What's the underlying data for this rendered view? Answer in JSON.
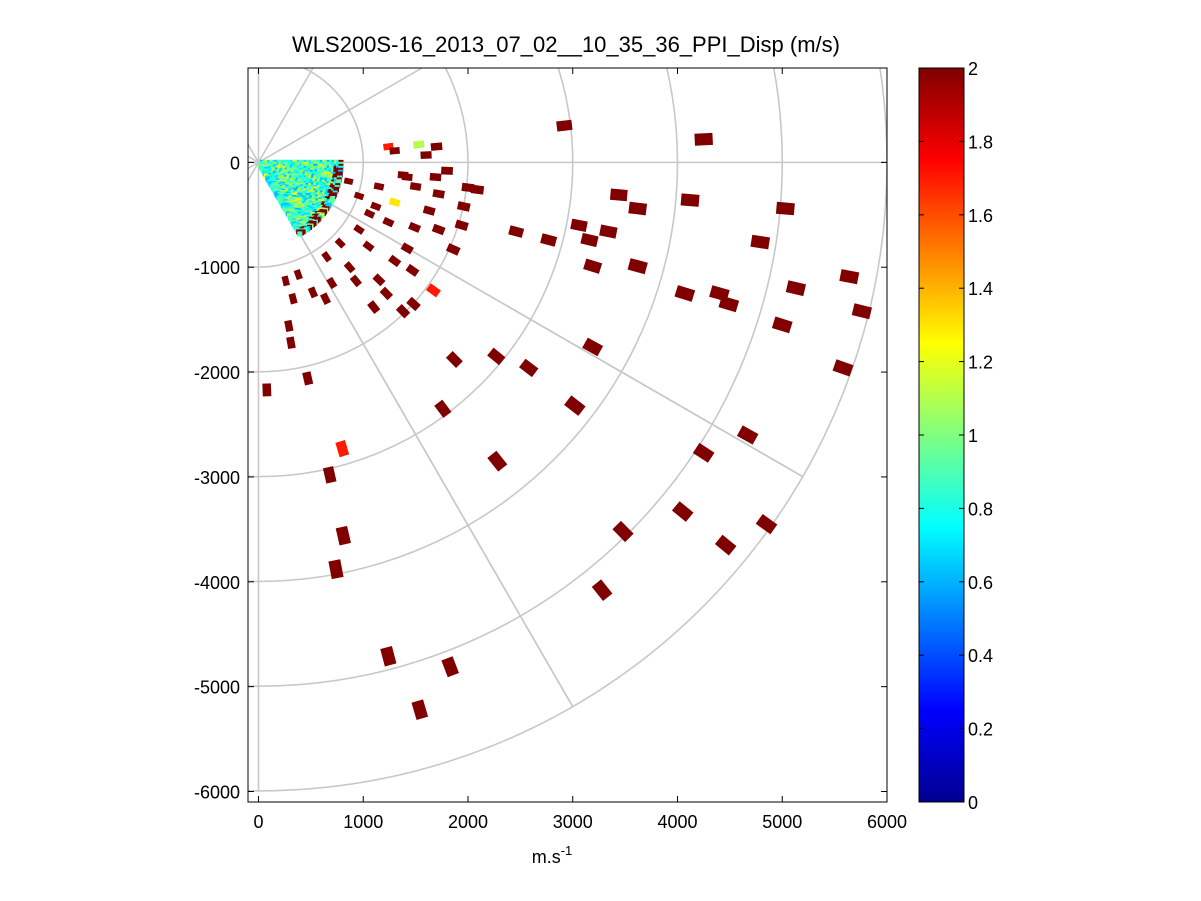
{
  "chart_data": {
    "type": "scatter",
    "subtype": "polar-ppi",
    "title": "WLS200S-16_2013_07_02__10_35_36_PPI_Disp (m/s)",
    "xlabel": "m.s",
    "xlabel_superscript": "-1",
    "ylabel": "",
    "xlim": [
      -100,
      6000
    ],
    "ylim": [
      -6100,
      900
    ],
    "xticks": [
      0,
      1000,
      2000,
      3000,
      4000,
      5000,
      6000
    ],
    "xtick_labels": [
      "0",
      "1000",
      "2000",
      "3000",
      "4000",
      "5000",
      "6000"
    ],
    "yticks": [
      0,
      -1000,
      -2000,
      -3000,
      -4000,
      -5000,
      -6000
    ],
    "ytick_labels": [
      "0",
      "-1000",
      "-2000",
      "-3000",
      "-4000",
      "-5000",
      "-6000"
    ],
    "polar_grid": {
      "ring_radii": [
        1000,
        2000,
        3000,
        4000,
        5000,
        6000
      ],
      "spoke_angles_deg": [
        0,
        -30,
        -60,
        30,
        60,
        90,
        120,
        150,
        180,
        210,
        240,
        270,
        300,
        330
      ]
    },
    "colorbar": {
      "colormap": "jet",
      "clim": [
        0,
        2
      ],
      "ticks": [
        0,
        0.2,
        0.4,
        0.6,
        0.8,
        1,
        1.2,
        1.4,
        1.6,
        1.8,
        2
      ],
      "tick_labels": [
        "0",
        "0.2",
        "0.4",
        "0.6",
        "0.8",
        "1",
        "1.2",
        "1.4",
        "1.6",
        "1.8",
        "2"
      ]
    },
    "near_field": {
      "description_values": "dense returns within ~800 m, values mostly 0.6-1.2",
      "r_max": 800,
      "angle_from_deg": 0,
      "angle_to_deg": -60
    },
    "points": [
      {
        "x": 2920,
        "y": 350,
        "v": 2
      },
      {
        "x": 4250,
        "y": 220,
        "v": 2
      },
      {
        "x": 3440,
        "y": -310,
        "v": 2
      },
      {
        "x": 4120,
        "y": -360,
        "v": 2
      },
      {
        "x": 5030,
        "y": -440,
        "v": 2
      },
      {
        "x": 3620,
        "y": -440,
        "v": 2
      },
      {
        "x": 2460,
        "y": -660,
        "v": 2
      },
      {
        "x": 3060,
        "y": -600,
        "v": 2
      },
      {
        "x": 3340,
        "y": -660,
        "v": 2
      },
      {
        "x": 2770,
        "y": -740,
        "v": 2
      },
      {
        "x": 3160,
        "y": -740,
        "v": 2
      },
      {
        "x": 4790,
        "y": -760,
        "v": 2
      },
      {
        "x": 3190,
        "y": -990,
        "v": 2
      },
      {
        "x": 3620,
        "y": -990,
        "v": 2
      },
      {
        "x": 5640,
        "y": -1090,
        "v": 2
      },
      {
        "x": 4400,
        "y": -1250,
        "v": 2
      },
      {
        "x": 4070,
        "y": -1250,
        "v": 2
      },
      {
        "x": 5130,
        "y": -1200,
        "v": 2
      },
      {
        "x": 4490,
        "y": -1350,
        "v": 2
      },
      {
        "x": 5760,
        "y": -1420,
        "v": 2
      },
      {
        "x": 5000,
        "y": -1550,
        "v": 2
      },
      {
        "x": 3190,
        "y": -1760,
        "v": 2
      },
      {
        "x": 1870,
        "y": -1880,
        "v": 2
      },
      {
        "x": 2270,
        "y": -1850,
        "v": 2
      },
      {
        "x": 2580,
        "y": -1960,
        "v": 2
      },
      {
        "x": 5580,
        "y": -1960,
        "v": 2
      },
      {
        "x": 3020,
        "y": -2320,
        "v": 2
      },
      {
        "x": 1760,
        "y": -2350,
        "v": 2
      },
      {
        "x": 4670,
        "y": -2600,
        "v": 2
      },
      {
        "x": 800,
        "y": -2730,
        "v": 1.7
      },
      {
        "x": 4250,
        "y": -2770,
        "v": 2
      },
      {
        "x": 2280,
        "y": -2850,
        "v": 2
      },
      {
        "x": 680,
        "y": -2980,
        "v": 2
      },
      {
        "x": 4050,
        "y": -3330,
        "v": 2
      },
      {
        "x": 4850,
        "y": -3450,
        "v": 2
      },
      {
        "x": 3480,
        "y": -3520,
        "v": 2
      },
      {
        "x": 810,
        "y": -3560,
        "v": 2
      },
      {
        "x": 4460,
        "y": -3650,
        "v": 2
      },
      {
        "x": 740,
        "y": -3880,
        "v": 2
      },
      {
        "x": 3280,
        "y": -4080,
        "v": 2
      },
      {
        "x": 1240,
        "y": -4710,
        "v": 2
      },
      {
        "x": 1830,
        "y": -4810,
        "v": 2
      },
      {
        "x": 1540,
        "y": -5220,
        "v": 2
      },
      {
        "x": 80,
        "y": -2170,
        "v": 2
      },
      {
        "x": 470,
        "y": -2060,
        "v": 2
      },
      {
        "x": 1670,
        "y": -1220,
        "v": 1.7
      },
      {
        "x": 1530,
        "y": 170,
        "v": 1.1
      },
      {
        "x": 1240,
        "y": 150,
        "v": 1.7
      },
      {
        "x": 1300,
        "y": -380,
        "v": 1.3
      },
      {
        "x": 1500,
        "y": -230,
        "v": 2
      },
      {
        "x": 1720,
        "y": -300,
        "v": 2
      },
      {
        "x": 1960,
        "y": -420,
        "v": 2
      },
      {
        "x": 2090,
        "y": -260,
        "v": 2
      },
      {
        "x": 1420,
        "y": -140,
        "v": 2
      },
      {
        "x": 1380,
        "y": -1420,
        "v": 2
      },
      {
        "x": 1480,
        "y": -1350,
        "v": 2
      },
      {
        "x": 1100,
        "y": -1380,
        "v": 2
      },
      {
        "x": 1600,
        "y": 70,
        "v": 2
      },
      {
        "x": 1380,
        "y": -120,
        "v": 2
      },
      {
        "x": 1800,
        "y": -80,
        "v": 2
      },
      {
        "x": 1150,
        "y": -230,
        "v": 2
      },
      {
        "x": 1060,
        "y": -490,
        "v": 2
      },
      {
        "x": 1240,
        "y": -570,
        "v": 2
      },
      {
        "x": 1490,
        "y": -620,
        "v": 2
      },
      {
        "x": 1720,
        "y": -640,
        "v": 2
      },
      {
        "x": 1050,
        "y": -800,
        "v": 2
      },
      {
        "x": 1300,
        "y": -940,
        "v": 2
      },
      {
        "x": 1470,
        "y": -1030,
        "v": 2
      },
      {
        "x": 1150,
        "y": -1120,
        "v": 2
      },
      {
        "x": 870,
        "y": -1000,
        "v": 2
      },
      {
        "x": 700,
        "y": -1150,
        "v": 2
      },
      {
        "x": 520,
        "y": -1240,
        "v": 2
      },
      {
        "x": 330,
        "y": -1300,
        "v": 2
      },
      {
        "x": 310,
        "y": -1720,
        "v": 2
      },
      {
        "x": 290,
        "y": -1560,
        "v": 2
      },
      {
        "x": 260,
        "y": -1130,
        "v": 2
      },
      {
        "x": 380,
        "y": -1070,
        "v": 2
      },
      {
        "x": 640,
        "y": -1300,
        "v": 2
      },
      {
        "x": 930,
        "y": -1130,
        "v": 2
      },
      {
        "x": 1220,
        "y": -1250,
        "v": 2
      },
      {
        "x": 1420,
        "y": -820,
        "v": 2
      },
      {
        "x": 1860,
        "y": -830,
        "v": 2
      },
      {
        "x": 1940,
        "y": -600,
        "v": 2
      },
      {
        "x": 780,
        "y": -770,
        "v": 2
      },
      {
        "x": 650,
        "y": -900,
        "v": 2
      },
      {
        "x": 960,
        "y": -640,
        "v": 2
      },
      {
        "x": 1120,
        "y": -420,
        "v": 2
      },
      {
        "x": 1690,
        "y": -140,
        "v": 2
      },
      {
        "x": 960,
        "y": -320,
        "v": 2
      },
      {
        "x": 860,
        "y": -180,
        "v": 2
      },
      {
        "x": 1300,
        "y": 110,
        "v": 2
      },
      {
        "x": 1700,
        "y": 150,
        "v": 2
      },
      {
        "x": 2000,
        "y": -240,
        "v": 2
      },
      {
        "x": 1630,
        "y": -460,
        "v": 2
      }
    ]
  }
}
